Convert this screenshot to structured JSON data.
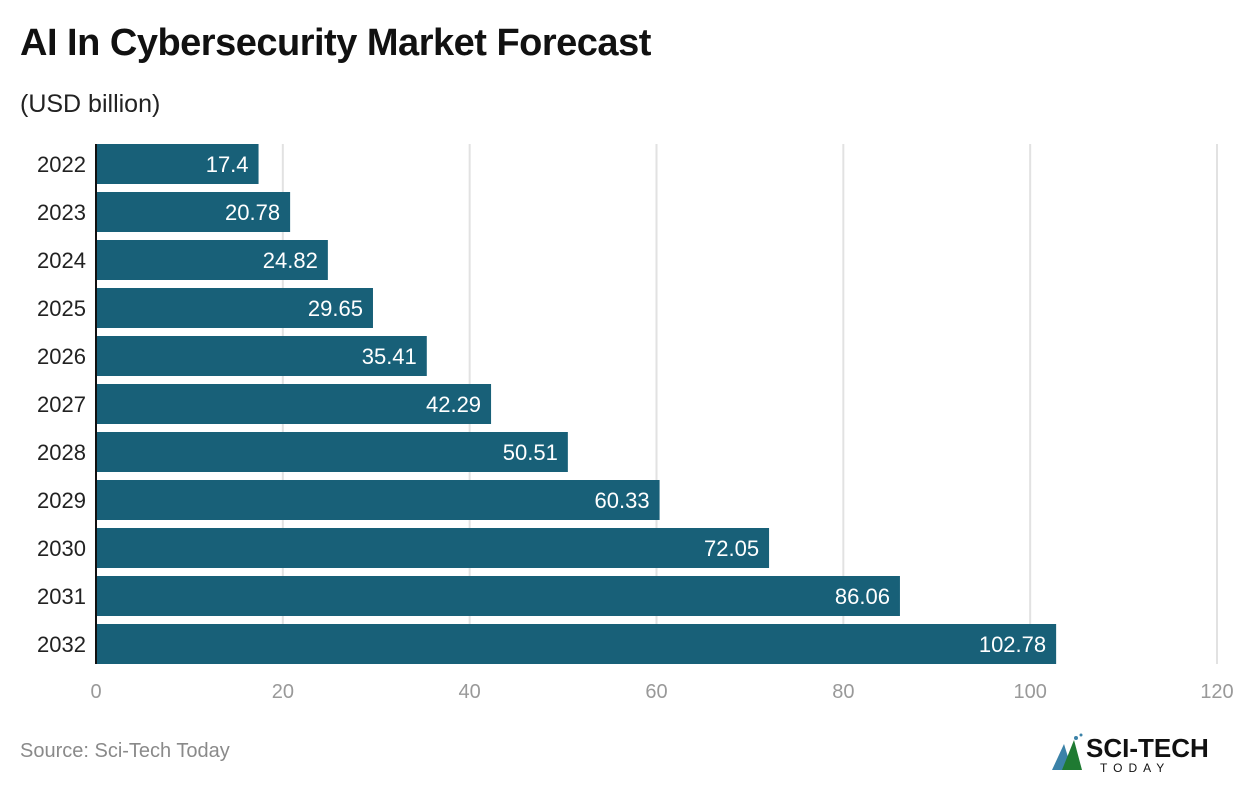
{
  "chart_data": {
    "type": "bar",
    "orientation": "horizontal",
    "title": "AI In Cybersecurity Market Forecast",
    "subtitle": "(USD billion)",
    "categories": [
      "2022",
      "2023",
      "2024",
      "2025",
      "2026",
      "2027",
      "2028",
      "2029",
      "2030",
      "2031",
      "2032"
    ],
    "values": [
      17.4,
      20.78,
      24.82,
      29.65,
      35.41,
      42.29,
      50.51,
      60.33,
      72.05,
      86.06,
      102.78
    ],
    "xlim": [
      0,
      120
    ],
    "xticks": [
      0,
      20,
      40,
      60,
      80,
      100,
      120
    ],
    "grid": true,
    "bar_color": "#186078",
    "data_labels": true
  },
  "source": "Source: Sci-Tech Today",
  "logo": {
    "text": "SCI-TECH",
    "subtext": "TODAY"
  }
}
